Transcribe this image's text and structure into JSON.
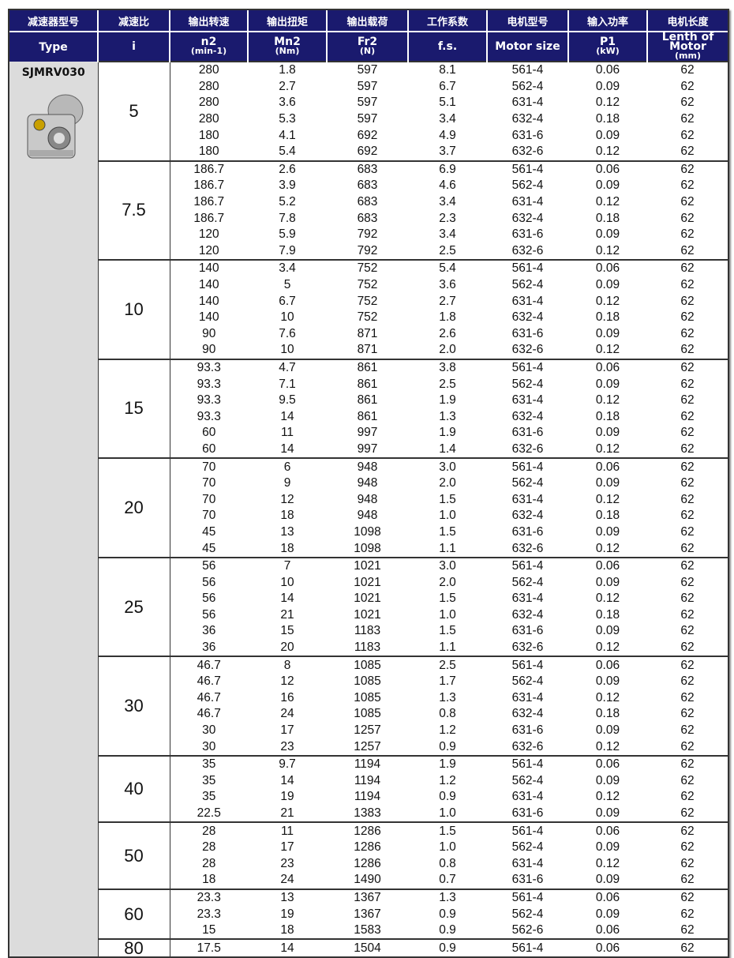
{
  "header": {
    "row1": [
      "减速器型号",
      "减速比",
      "输出转速",
      "输出扭矩",
      "输出载荷",
      "工作系数",
      "电机型号",
      "输入功率",
      "电机长度"
    ],
    "row2": [
      [
        "Type",
        ""
      ],
      [
        "i",
        ""
      ],
      [
        "n2",
        "(min-1)"
      ],
      [
        "Mn2",
        "(Nm)"
      ],
      [
        "Fr2",
        "(N)"
      ],
      [
        "f.s.",
        ""
      ],
      [
        "Motor size",
        ""
      ],
      [
        "P1",
        "(kW)"
      ],
      [
        "Lenth of Motor",
        "(mm)"
      ]
    ]
  },
  "type": "SJMRV030",
  "groups": [
    {
      "i": "5",
      "rows": [
        [
          "280",
          "1.8",
          "597",
          "8.1",
          "561-4",
          "0.06",
          "62"
        ],
        [
          "280",
          "2.7",
          "597",
          "6.7",
          "562-4",
          "0.09",
          "62"
        ],
        [
          "280",
          "3.6",
          "597",
          "5.1",
          "631-4",
          "0.12",
          "62"
        ],
        [
          "280",
          "5.3",
          "597",
          "3.4",
          "632-4",
          "0.18",
          "62"
        ],
        [
          "180",
          "4.1",
          "692",
          "4.9",
          "631-6",
          "0.09",
          "62"
        ],
        [
          "180",
          "5.4",
          "692",
          "3.7",
          "632-6",
          "0.12",
          "62"
        ]
      ]
    },
    {
      "i": "7.5",
      "rows": [
        [
          "186.7",
          "2.6",
          "683",
          "6.9",
          "561-4",
          "0.06",
          "62"
        ],
        [
          "186.7",
          "3.9",
          "683",
          "4.6",
          "562-4",
          "0.09",
          "62"
        ],
        [
          "186.7",
          "5.2",
          "683",
          "3.4",
          "631-4",
          "0.12",
          "62"
        ],
        [
          "186.7",
          "7.8",
          "683",
          "2.3",
          "632-4",
          "0.18",
          "62"
        ],
        [
          "120",
          "5.9",
          "792",
          "3.4",
          "631-6",
          "0.09",
          "62"
        ],
        [
          "120",
          "7.9",
          "792",
          "2.5",
          "632-6",
          "0.12",
          "62"
        ]
      ]
    },
    {
      "i": "10",
      "rows": [
        [
          "140",
          "3.4",
          "752",
          "5.4",
          "561-4",
          "0.06",
          "62"
        ],
        [
          "140",
          "5",
          "752",
          "3.6",
          "562-4",
          "0.09",
          "62"
        ],
        [
          "140",
          "6.7",
          "752",
          "2.7",
          "631-4",
          "0.12",
          "62"
        ],
        [
          "140",
          "10",
          "752",
          "1.8",
          "632-4",
          "0.18",
          "62"
        ],
        [
          "90",
          "7.6",
          "871",
          "2.6",
          "631-6",
          "0.09",
          "62"
        ],
        [
          "90",
          "10",
          "871",
          "2.0",
          "632-6",
          "0.12",
          "62"
        ]
      ]
    },
    {
      "i": "15",
      "rows": [
        [
          "93.3",
          "4.7",
          "861",
          "3.8",
          "561-4",
          "0.06",
          "62"
        ],
        [
          "93.3",
          "7.1",
          "861",
          "2.5",
          "562-4",
          "0.09",
          "62"
        ],
        [
          "93.3",
          "9.5",
          "861",
          "1.9",
          "631-4",
          "0.12",
          "62"
        ],
        [
          "93.3",
          "14",
          "861",
          "1.3",
          "632-4",
          "0.18",
          "62"
        ],
        [
          "60",
          "11",
          "997",
          "1.9",
          "631-6",
          "0.09",
          "62"
        ],
        [
          "60",
          "14",
          "997",
          "1.4",
          "632-6",
          "0.12",
          "62"
        ]
      ]
    },
    {
      "i": "20",
      "rows": [
        [
          "70",
          "6",
          "948",
          "3.0",
          "561-4",
          "0.06",
          "62"
        ],
        [
          "70",
          "9",
          "948",
          "2.0",
          "562-4",
          "0.09",
          "62"
        ],
        [
          "70",
          "12",
          "948",
          "1.5",
          "631-4",
          "0.12",
          "62"
        ],
        [
          "70",
          "18",
          "948",
          "1.0",
          "632-4",
          "0.18",
          "62"
        ],
        [
          "45",
          "13",
          "1098",
          "1.5",
          "631-6",
          "0.09",
          "62"
        ],
        [
          "45",
          "18",
          "1098",
          "1.1",
          "632-6",
          "0.12",
          "62"
        ]
      ]
    },
    {
      "i": "25",
      "rows": [
        [
          "56",
          "7",
          "1021",
          "3.0",
          "561-4",
          "0.06",
          "62"
        ],
        [
          "56",
          "10",
          "1021",
          "2.0",
          "562-4",
          "0.09",
          "62"
        ],
        [
          "56",
          "14",
          "1021",
          "1.5",
          "631-4",
          "0.12",
          "62"
        ],
        [
          "56",
          "21",
          "1021",
          "1.0",
          "632-4",
          "0.18",
          "62"
        ],
        [
          "36",
          "15",
          "1183",
          "1.5",
          "631-6",
          "0.09",
          "62"
        ],
        [
          "36",
          "20",
          "1183",
          "1.1",
          "632-6",
          "0.12",
          "62"
        ]
      ]
    },
    {
      "i": "30",
      "rows": [
        [
          "46.7",
          "8",
          "1085",
          "2.5",
          "561-4",
          "0.06",
          "62"
        ],
        [
          "46.7",
          "12",
          "1085",
          "1.7",
          "562-4",
          "0.09",
          "62"
        ],
        [
          "46.7",
          "16",
          "1085",
          "1.3",
          "631-4",
          "0.12",
          "62"
        ],
        [
          "46.7",
          "24",
          "1085",
          "0.8",
          "632-4",
          "0.18",
          "62"
        ],
        [
          "30",
          "17",
          "1257",
          "1.2",
          "631-6",
          "0.09",
          "62"
        ],
        [
          "30",
          "23",
          "1257",
          "0.9",
          "632-6",
          "0.12",
          "62"
        ]
      ]
    },
    {
      "i": "40",
      "rows": [
        [
          "35",
          "9.7",
          "1194",
          "1.9",
          "561-4",
          "0.06",
          "62"
        ],
        [
          "35",
          "14",
          "1194",
          "1.2",
          "562-4",
          "0.09",
          "62"
        ],
        [
          "35",
          "19",
          "1194",
          "0.9",
          "631-4",
          "0.12",
          "62"
        ],
        [
          "22.5",
          "21",
          "1383",
          "1.0",
          "631-6",
          "0.09",
          "62"
        ]
      ]
    },
    {
      "i": "50",
      "rows": [
        [
          "28",
          "11",
          "1286",
          "1.5",
          "561-4",
          "0.06",
          "62"
        ],
        [
          "28",
          "17",
          "1286",
          "1.0",
          "562-4",
          "0.09",
          "62"
        ],
        [
          "28",
          "23",
          "1286",
          "0.8",
          "631-4",
          "0.12",
          "62"
        ],
        [
          "18",
          "24",
          "1490",
          "0.7",
          "631-6",
          "0.09",
          "62"
        ]
      ]
    },
    {
      "i": "60",
      "rows": [
        [
          "23.3",
          "13",
          "1367",
          "1.3",
          "561-4",
          "0.06",
          "62"
        ],
        [
          "23.3",
          "19",
          "1367",
          "0.9",
          "562-4",
          "0.09",
          "62"
        ],
        [
          "15",
          "18",
          "1583",
          "0.9",
          "562-6",
          "0.06",
          "62"
        ]
      ]
    },
    {
      "i": "80",
      "rows": [
        [
          "17.5",
          "14",
          "1504",
          "0.9",
          "561-4",
          "0.06",
          "62"
        ]
      ]
    }
  ]
}
